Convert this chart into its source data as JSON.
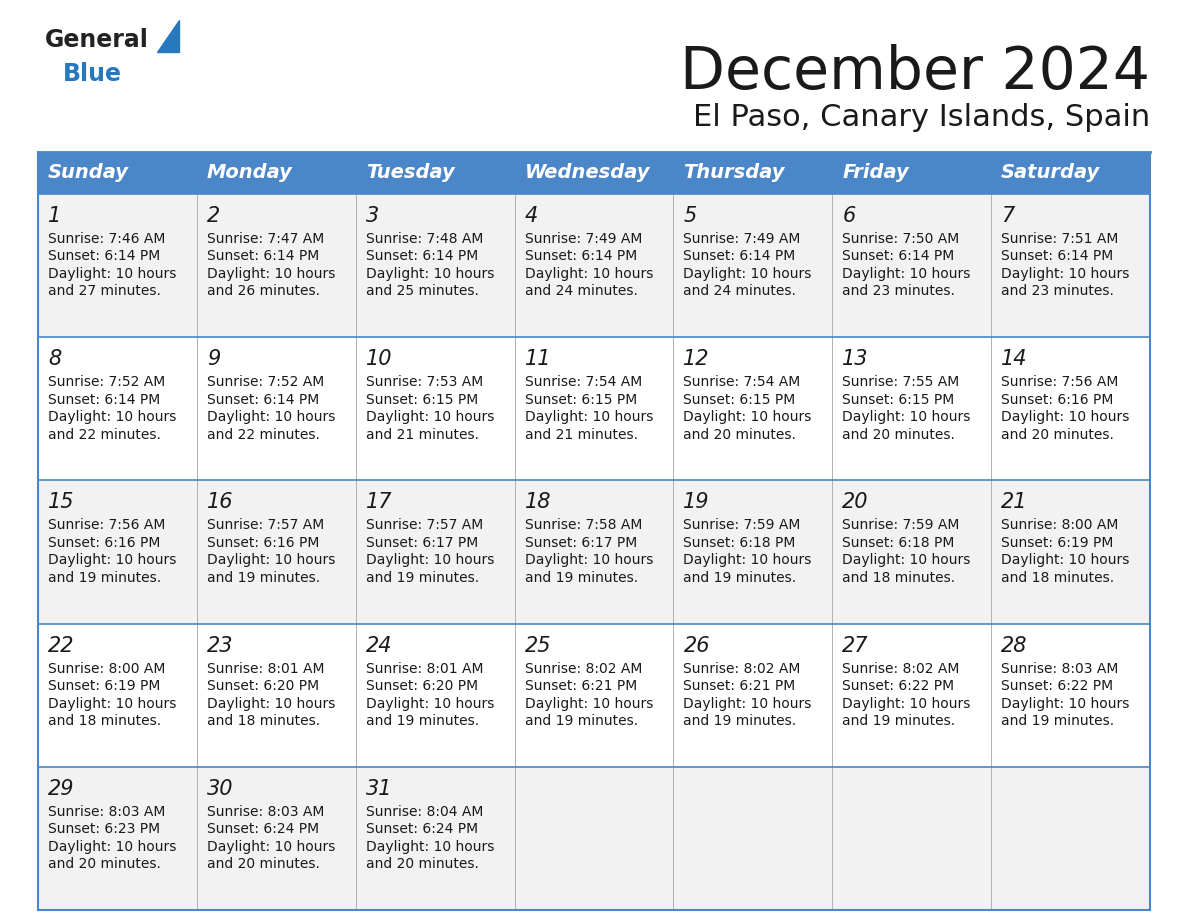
{
  "title": "December 2024",
  "subtitle": "El Paso, Canary Islands, Spain",
  "header_color": "#4a86c8",
  "header_text_color": "#ffffff",
  "border_color": "#4a86c8",
  "row_bg_even": "#f2f2f2",
  "row_bg_odd": "#ffffff",
  "text_color": "#1a1a1a",
  "days_of_week": [
    "Sunday",
    "Monday",
    "Tuesday",
    "Wednesday",
    "Thursday",
    "Friday",
    "Saturday"
  ],
  "weeks": [
    [
      {
        "day": "1",
        "sunrise": "7:46 AM",
        "sunset": "6:14 PM",
        "daylight": "10 hours and 27 minutes."
      },
      {
        "day": "2",
        "sunrise": "7:47 AM",
        "sunset": "6:14 PM",
        "daylight": "10 hours and 26 minutes."
      },
      {
        "day": "3",
        "sunrise": "7:48 AM",
        "sunset": "6:14 PM",
        "daylight": "10 hours and 25 minutes."
      },
      {
        "day": "4",
        "sunrise": "7:49 AM",
        "sunset": "6:14 PM",
        "daylight": "10 hours and 24 minutes."
      },
      {
        "day": "5",
        "sunrise": "7:49 AM",
        "sunset": "6:14 PM",
        "daylight": "10 hours and 24 minutes."
      },
      {
        "day": "6",
        "sunrise": "7:50 AM",
        "sunset": "6:14 PM",
        "daylight": "10 hours and 23 minutes."
      },
      {
        "day": "7",
        "sunrise": "7:51 AM",
        "sunset": "6:14 PM",
        "daylight": "10 hours and 23 minutes."
      }
    ],
    [
      {
        "day": "8",
        "sunrise": "7:52 AM",
        "sunset": "6:14 PM",
        "daylight": "10 hours and 22 minutes."
      },
      {
        "day": "9",
        "sunrise": "7:52 AM",
        "sunset": "6:14 PM",
        "daylight": "10 hours and 22 minutes."
      },
      {
        "day": "10",
        "sunrise": "7:53 AM",
        "sunset": "6:15 PM",
        "daylight": "10 hours and 21 minutes."
      },
      {
        "day": "11",
        "sunrise": "7:54 AM",
        "sunset": "6:15 PM",
        "daylight": "10 hours and 21 minutes."
      },
      {
        "day": "12",
        "sunrise": "7:54 AM",
        "sunset": "6:15 PM",
        "daylight": "10 hours and 20 minutes."
      },
      {
        "day": "13",
        "sunrise": "7:55 AM",
        "sunset": "6:15 PM",
        "daylight": "10 hours and 20 minutes."
      },
      {
        "day": "14",
        "sunrise": "7:56 AM",
        "sunset": "6:16 PM",
        "daylight": "10 hours and 20 minutes."
      }
    ],
    [
      {
        "day": "15",
        "sunrise": "7:56 AM",
        "sunset": "6:16 PM",
        "daylight": "10 hours and 19 minutes."
      },
      {
        "day": "16",
        "sunrise": "7:57 AM",
        "sunset": "6:16 PM",
        "daylight": "10 hours and 19 minutes."
      },
      {
        "day": "17",
        "sunrise": "7:57 AM",
        "sunset": "6:17 PM",
        "daylight": "10 hours and 19 minutes."
      },
      {
        "day": "18",
        "sunrise": "7:58 AM",
        "sunset": "6:17 PM",
        "daylight": "10 hours and 19 minutes."
      },
      {
        "day": "19",
        "sunrise": "7:59 AM",
        "sunset": "6:18 PM",
        "daylight": "10 hours and 19 minutes."
      },
      {
        "day": "20",
        "sunrise": "7:59 AM",
        "sunset": "6:18 PM",
        "daylight": "10 hours and 18 minutes."
      },
      {
        "day": "21",
        "sunrise": "8:00 AM",
        "sunset": "6:19 PM",
        "daylight": "10 hours and 18 minutes."
      }
    ],
    [
      {
        "day": "22",
        "sunrise": "8:00 AM",
        "sunset": "6:19 PM",
        "daylight": "10 hours and 18 minutes."
      },
      {
        "day": "23",
        "sunrise": "8:01 AM",
        "sunset": "6:20 PM",
        "daylight": "10 hours and 18 minutes."
      },
      {
        "day": "24",
        "sunrise": "8:01 AM",
        "sunset": "6:20 PM",
        "daylight": "10 hours and 19 minutes."
      },
      {
        "day": "25",
        "sunrise": "8:02 AM",
        "sunset": "6:21 PM",
        "daylight": "10 hours and 19 minutes."
      },
      {
        "day": "26",
        "sunrise": "8:02 AM",
        "sunset": "6:21 PM",
        "daylight": "10 hours and 19 minutes."
      },
      {
        "day": "27",
        "sunrise": "8:02 AM",
        "sunset": "6:22 PM",
        "daylight": "10 hours and 19 minutes."
      },
      {
        "day": "28",
        "sunrise": "8:03 AM",
        "sunset": "6:22 PM",
        "daylight": "10 hours and 19 minutes."
      }
    ],
    [
      {
        "day": "29",
        "sunrise": "8:03 AM",
        "sunset": "6:23 PM",
        "daylight": "10 hours and 20 minutes."
      },
      {
        "day": "30",
        "sunrise": "8:03 AM",
        "sunset": "6:24 PM",
        "daylight": "10 hours and 20 minutes."
      },
      {
        "day": "31",
        "sunrise": "8:04 AM",
        "sunset": "6:24 PM",
        "daylight": "10 hours and 20 minutes."
      },
      null,
      null,
      null,
      null
    ]
  ],
  "logo_general_color": "#222222",
  "logo_blue_color": "#2878be",
  "title_fontsize": 42,
  "subtitle_fontsize": 22,
  "header_fontsize": 14,
  "day_num_fontsize": 15,
  "cell_text_fontsize": 10
}
